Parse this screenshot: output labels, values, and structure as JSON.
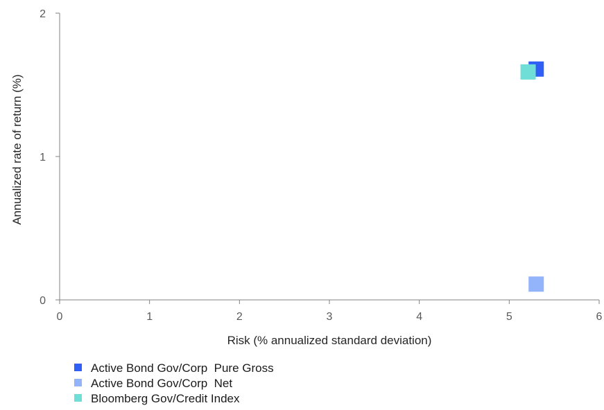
{
  "chart_data": {
    "type": "scatter",
    "title": "",
    "xlabel": "Risk (% annualized standard deviation)",
    "ylabel": "Annualized rate of return (%)",
    "xlim": [
      0,
      6
    ],
    "ylim": [
      0,
      2
    ],
    "x_ticks": [
      "0",
      "1",
      "2",
      "3",
      "4",
      "5",
      "6"
    ],
    "y_ticks": [
      "0",
      "1",
      "2"
    ],
    "grid": false,
    "legend_position": "bottom-left",
    "series": [
      {
        "name": "Active Bond Gov/Corp  Pure Gross",
        "color": "#2f5ff5",
        "x": 5.3,
        "y": 1.61
      },
      {
        "name": "Active Bond Gov/Corp  Net",
        "color": "#93b3fa",
        "x": 5.3,
        "y": 0.11
      },
      {
        "name": "Bloomberg Gov/Credit Index",
        "color": "#6fded6",
        "x": 5.21,
        "y": 1.59
      }
    ]
  }
}
